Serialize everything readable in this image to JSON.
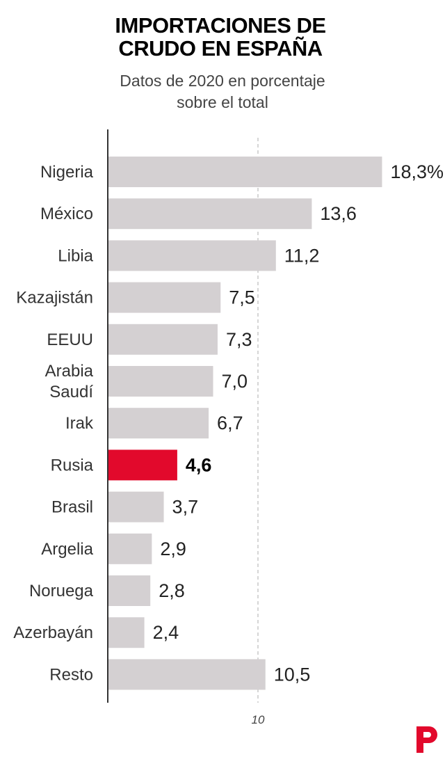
{
  "chart_data": {
    "type": "bar",
    "orientation": "horizontal",
    "title": [
      "IMPORTACIONES DE",
      "CRUDO EN ESPAÑA"
    ],
    "subtitle": [
      "Datos de 2020 en porcentaje",
      "sobre el total"
    ],
    "categories": [
      [
        "Nigeria"
      ],
      [
        "México"
      ],
      [
        "Libia"
      ],
      [
        "Kazajistán"
      ],
      [
        "EEUU"
      ],
      [
        "Arabia",
        "Saudí"
      ],
      [
        "Irak"
      ],
      [
        "Rusia"
      ],
      [
        "Brasil"
      ],
      [
        "Argelia"
      ],
      [
        "Noruega"
      ],
      [
        "Azerbayán"
      ],
      [
        "Resto"
      ]
    ],
    "values": [
      18.3,
      13.6,
      11.2,
      7.5,
      7.3,
      7.0,
      6.7,
      4.6,
      3.7,
      2.9,
      2.8,
      2.4,
      10.5
    ],
    "value_labels": [
      "18,3%",
      "13,6",
      "11,2",
      "7,5",
      "7,3",
      "7,0",
      "6,7",
      "4,6",
      "3,7",
      "2,9",
      "2,8",
      "2,4",
      "10,5"
    ],
    "highlight": "Rusia",
    "xlim": [
      0,
      19
    ],
    "reference_line": {
      "value": 10,
      "label": "10"
    },
    "grid": false,
    "colors": {
      "bar": "#d4d0d2",
      "highlight": "#e2092c",
      "axis": "#333333",
      "reference": "#bbbbbb",
      "logo": "#e2092c"
    }
  },
  "logo": {
    "name": "publico-logo"
  }
}
